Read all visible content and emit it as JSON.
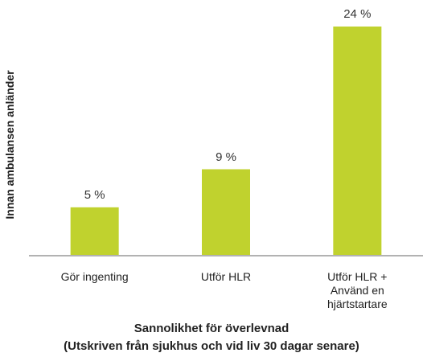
{
  "chart_data": {
    "type": "bar",
    "ylabel": "Innan ambulansen anländer",
    "xlabel": "Sannolikhet för överlevnad\n(Utskriven från sjukhus och vid liv 30 dagar senare)",
    "categories": [
      "Gör ingenting",
      "Utför HLR",
      "Utför HLR +\nAnvänd en\nhjärtstartare"
    ],
    "values": [
      5,
      9,
      24
    ],
    "value_labels": [
      "5 %",
      "9 %",
      "24 %"
    ],
    "color": "#c0d22e"
  }
}
